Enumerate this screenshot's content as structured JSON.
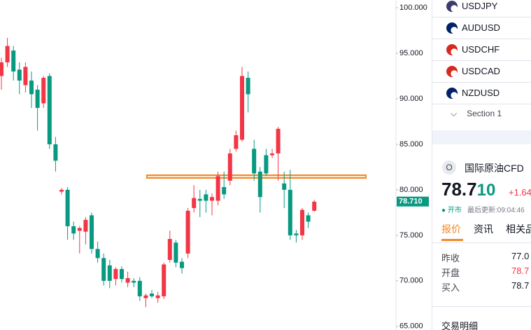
{
  "watchlist": {
    "symbols": [
      "USDJPY",
      "AUDUSD",
      "USDCHF",
      "USDCAD",
      "NZDUSD"
    ],
    "section": "Section 1"
  },
  "symbol_panel": {
    "icon_letter": "O",
    "name": "国际原油CFD",
    "price_main": "78.7",
    "price_tail": "10",
    "change": "+1.64",
    "status": "开市",
    "updated": "最后更新:09:04:46",
    "tabs": [
      "报价",
      "资讯",
      "相关品"
    ],
    "fields": [
      [
        "昨收",
        "77.0"
      ],
      [
        "开盘",
        "78.7"
      ],
      [
        "买入",
        "78.7"
      ]
    ],
    "section_title": "交易明细"
  },
  "chart_data": {
    "type": "candlestick",
    "up_color": "#f23645",
    "down_color": "#089981",
    "ylim": [
      64.6,
      100.85
    ],
    "yticks": [
      {
        "value": 100,
        "label": "100.000"
      },
      {
        "value": 95,
        "label": "95.000"
      },
      {
        "value": 90,
        "label": "90.000"
      },
      {
        "value": 85,
        "label": "85.000"
      },
      {
        "value": 80,
        "label": "80.000"
      },
      {
        "value": 75,
        "label": "75.000"
      },
      {
        "value": 70,
        "label": "70.000"
      },
      {
        "value": 65,
        "label": "65.000"
      }
    ],
    "last_price": {
      "value": 78.71,
      "label": "78.710"
    },
    "open": [
      92.5,
      94,
      95.3,
      93.2,
      91.5,
      92,
      91,
      89.5,
      92.5,
      85,
      79.8,
      80,
      76,
      75.5,
      75.4,
      77.2,
      73.5,
      72.5,
      71.7,
      70.2,
      71.3,
      69.8,
      70,
      70,
      68.1,
      68.6,
      68.1,
      68.3,
      72.3,
      74.2,
      72.1,
      73,
      78,
      79,
      79.5,
      78.8,
      78.8,
      80.3,
      81,
      84.5,
      85.5,
      92.3,
      84.5,
      82,
      83.8,
      83.8,
      84,
      80.7,
      80,
      75.2,
      75,
      77.2,
      77.7
    ],
    "high": [
      94.5,
      96.7,
      95.8,
      94,
      94,
      93,
      91.5,
      92.5,
      92.8,
      85.8,
      80.2,
      80.3,
      76.5,
      76,
      77,
      77.5,
      74.3,
      73,
      72.3,
      71.5,
      71.6,
      71,
      70.3,
      70.4,
      68.6,
      69,
      68.8,
      72,
      75.5,
      74.5,
      72.5,
      78,
      80.5,
      80,
      80,
      79.6,
      82,
      82,
      84.5,
      86.5,
      93.5,
      93,
      85.5,
      82.5,
      84.5,
      84.5,
      86.9,
      82,
      82.2,
      75.6,
      78,
      77.5,
      78.9
    ],
    "low": [
      91,
      93.5,
      92,
      90.5,
      90.7,
      89,
      86.5,
      89,
      84.5,
      82,
      79.5,
      74.5,
      74.5,
      73,
      74,
      73,
      72,
      69.5,
      69.2,
      69.5,
      69.8,
      69.3,
      69.3,
      67.8,
      67.1,
      68.1,
      67.6,
      68,
      72,
      71.5,
      70.8,
      72.5,
      77.5,
      77,
      77.5,
      77.2,
      78.3,
      79,
      80.5,
      84.2,
      85.3,
      88.5,
      81,
      77.5,
      81.5,
      83.5,
      81,
      78,
      74.5,
      74.2,
      74.5,
      75.8,
      77.6
    ],
    "close": [
      94,
      95.8,
      93,
      92,
      93.5,
      90.5,
      89,
      92.3,
      85,
      83.2,
      80,
      76,
      75.2,
      75.8,
      76.7,
      73.5,
      72.5,
      70,
      70,
      71.3,
      70.2,
      70.3,
      69.8,
      68.3,
      68.4,
      68.3,
      68.4,
      71.8,
      74.6,
      72,
      71.4,
      77.7,
      79.1,
      78.8,
      78.8,
      79.2,
      81.5,
      79.5,
      84,
      86,
      92.5,
      90.5,
      81.8,
      79.2,
      81.8,
      84,
      86.7,
      80,
      75,
      75,
      77.8,
      76.5,
      78.7
    ]
  }
}
